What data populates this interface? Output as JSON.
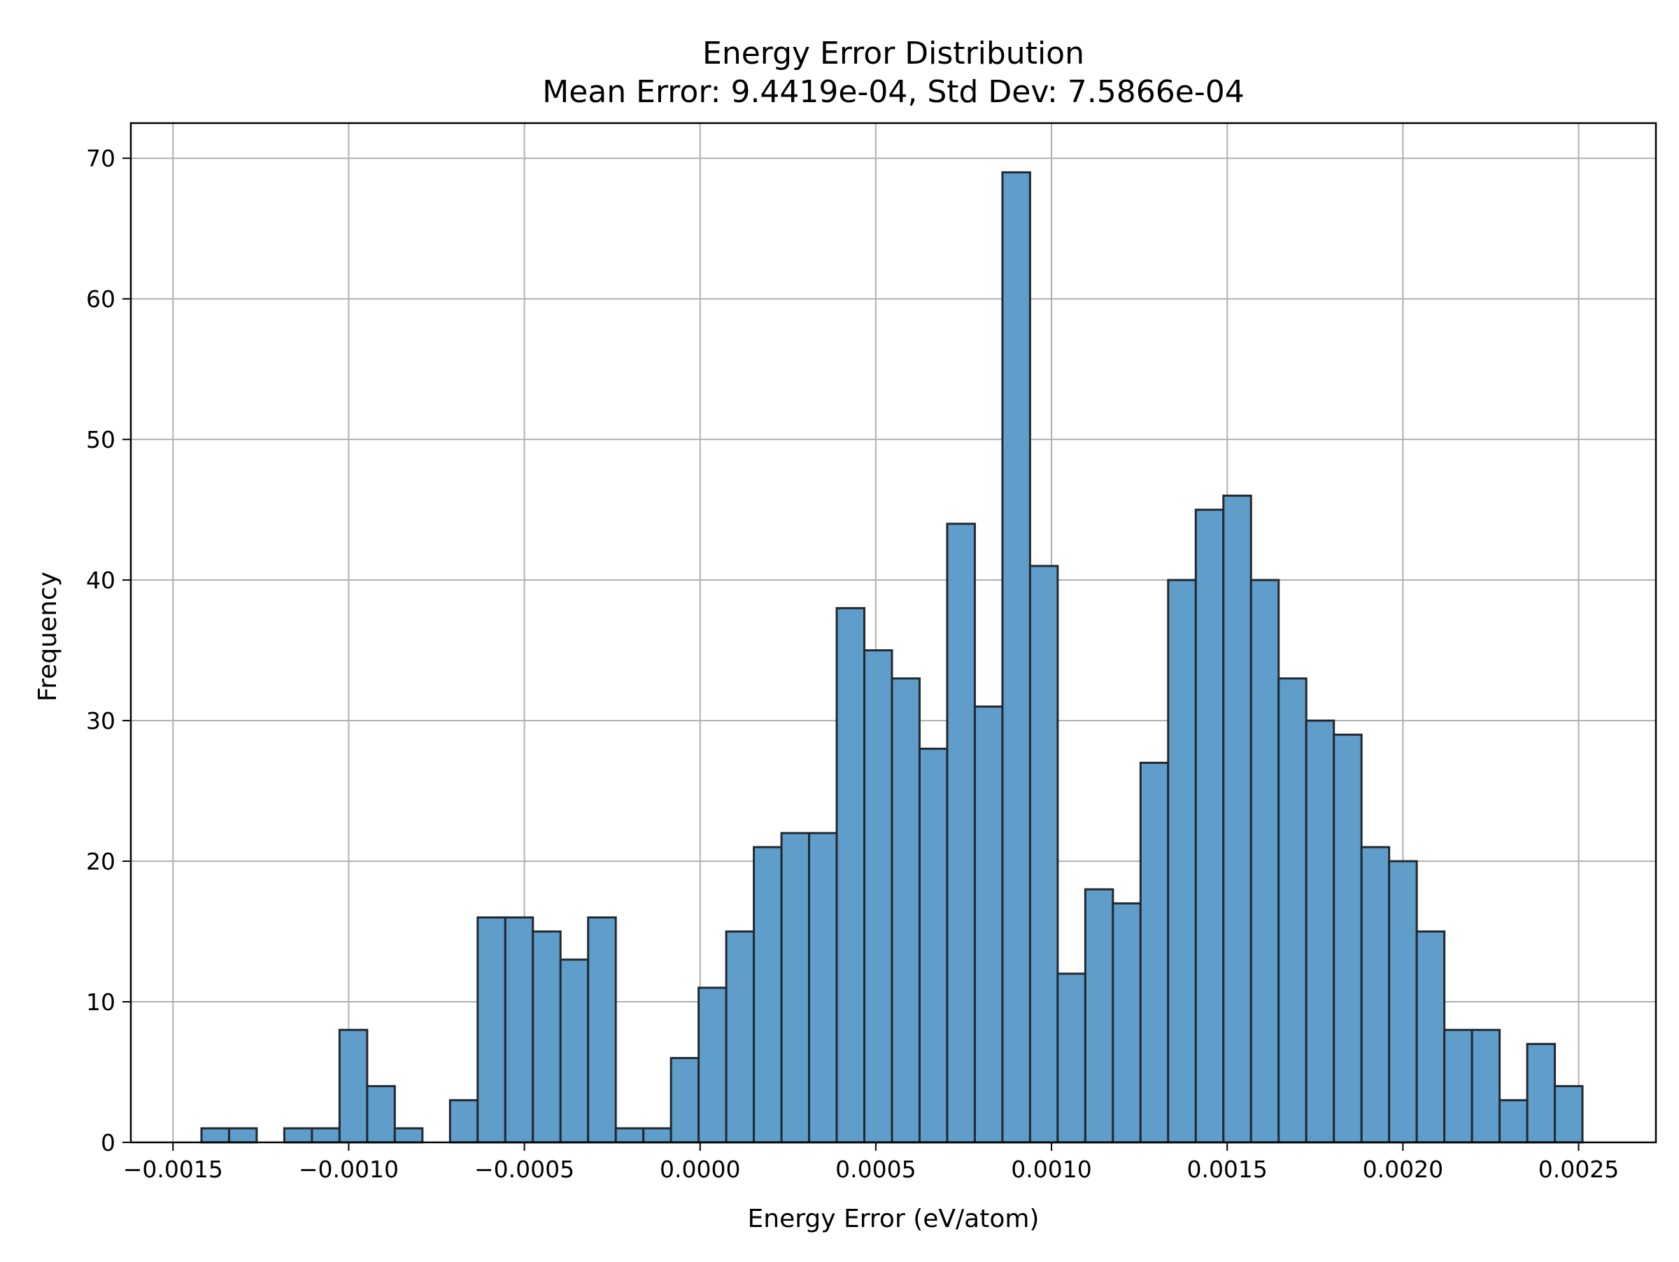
{
  "chart_data": {
    "type": "bar",
    "histogram": true,
    "title": "Energy Error Distribution",
    "subtitle": "Mean Error: 9.4419e-04, Std Dev: 7.5866e-04",
    "xlabel": "Energy Error (eV/atom)",
    "ylabel": "Frequency",
    "xlim": [
      -0.00162,
      0.00272
    ],
    "ylim": [
      0,
      72.5
    ],
    "xticks": [
      -0.0015,
      -0.001,
      -0.0005,
      0.0,
      0.0005,
      0.001,
      0.0015,
      0.002,
      0.0025
    ],
    "xtick_labels": [
      "−0.0015",
      "−0.0010",
      "−0.0005",
      "0.0000",
      "0.0005",
      "0.0010",
      "0.0015",
      "0.0020",
      "0.0025"
    ],
    "yticks": [
      0,
      10,
      20,
      30,
      40,
      50,
      60,
      70
    ],
    "ytick_labels": [
      "0",
      "10",
      "20",
      "30",
      "40",
      "50",
      "60",
      "70"
    ],
    "grid": true,
    "bar_color": "#5f9dcb",
    "bar_edge_color": "#23292e",
    "bin_start": -0.001419,
    "bin_width": 7.86e-05,
    "values": [
      1,
      1,
      0,
      1,
      1,
      8,
      4,
      1,
      0,
      3,
      16,
      16,
      15,
      13,
      16,
      1,
      1,
      6,
      11,
      15,
      21,
      22,
      22,
      38,
      35,
      33,
      28,
      44,
      31,
      69,
      41,
      12,
      18,
      17,
      27,
      40,
      45,
      46,
      40,
      33,
      30,
      29,
      21,
      20,
      15,
      8,
      8,
      3,
      7,
      4
    ]
  }
}
